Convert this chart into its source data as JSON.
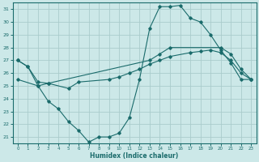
{
  "xlabel": "Humidex (Indice chaleur)",
  "bg_color": "#cce8e8",
  "grid_color": "#aacccc",
  "line_color": "#1a6b6b",
  "xlim": [
    -0.5,
    23.5
  ],
  "ylim": [
    20.5,
    31.5
  ],
  "yticks": [
    21,
    22,
    23,
    24,
    25,
    26,
    27,
    28,
    29,
    30,
    31
  ],
  "xticks": [
    0,
    1,
    2,
    3,
    4,
    5,
    6,
    7,
    8,
    9,
    10,
    11,
    12,
    13,
    14,
    15,
    16,
    17,
    18,
    19,
    20,
    21,
    22,
    23
  ],
  "line1_x": [
    0,
    1,
    2,
    3,
    4,
    5,
    6,
    7,
    8,
    9,
    10,
    11,
    12,
    13,
    14,
    15,
    16,
    17,
    18,
    19,
    20,
    21,
    22,
    23
  ],
  "line1_y": [
    27.0,
    26.5,
    25.0,
    23.8,
    23.2,
    22.2,
    21.5,
    20.6,
    21.0,
    21.0,
    21.3,
    22.5,
    25.5,
    29.5,
    31.2,
    31.2,
    31.3,
    30.3,
    30.0,
    29.0,
    27.8,
    26.8,
    25.5,
    25.5
  ],
  "line2_x": [
    0,
    2,
    3,
    5,
    6,
    9,
    10,
    11,
    12,
    13,
    14,
    15,
    17,
    18,
    19,
    20,
    21,
    22,
    23
  ],
  "line2_y": [
    25.5,
    25.0,
    25.2,
    24.8,
    25.3,
    25.5,
    25.7,
    26.0,
    26.3,
    26.7,
    27.0,
    27.3,
    27.6,
    27.7,
    27.8,
    27.6,
    27.0,
    26.0,
    25.5
  ],
  "line3_x": [
    0,
    1,
    2,
    3,
    13,
    14,
    15,
    20,
    21,
    22,
    23
  ],
  "line3_y": [
    27.0,
    26.5,
    25.3,
    25.2,
    27.0,
    27.5,
    28.0,
    28.0,
    27.5,
    26.3,
    25.5
  ]
}
